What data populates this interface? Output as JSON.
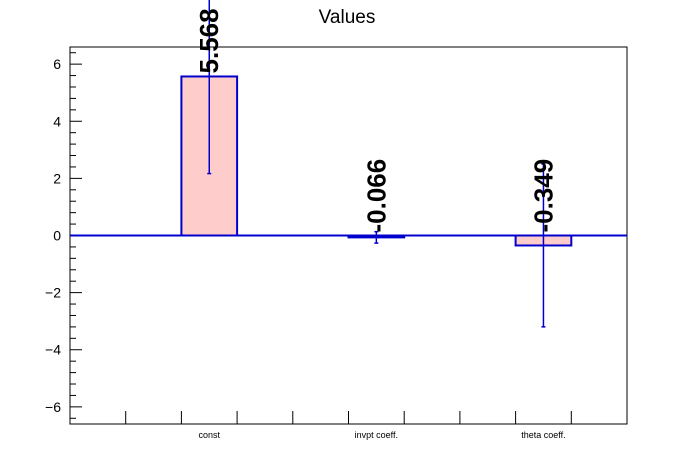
{
  "chart_data": {
    "type": "bar",
    "title": "Values",
    "categories": [
      "const",
      "invpt coeff.",
      "theta coeff."
    ],
    "values": [
      5.568,
      -0.066,
      -0.349
    ],
    "errors": [
      3.4,
      0.2,
      2.85
    ],
    "data_labels": [
      "5.568",
      "-0.066",
      "-0.349"
    ],
    "ylim": [
      -6.6,
      6.6
    ],
    "yticks": [
      -6,
      -4,
      -2,
      0,
      2,
      4,
      6
    ],
    "ytick_labels": [
      "−6",
      "−4",
      "−2",
      "0",
      "2",
      "4",
      "6"
    ],
    "grid": false,
    "colors": {
      "bar_fill": "#ffcccc",
      "bar_stroke": "#0000cc",
      "error_bar": "#0000cc",
      "zero_line": "#0000cc",
      "axis": "#000000"
    }
  }
}
